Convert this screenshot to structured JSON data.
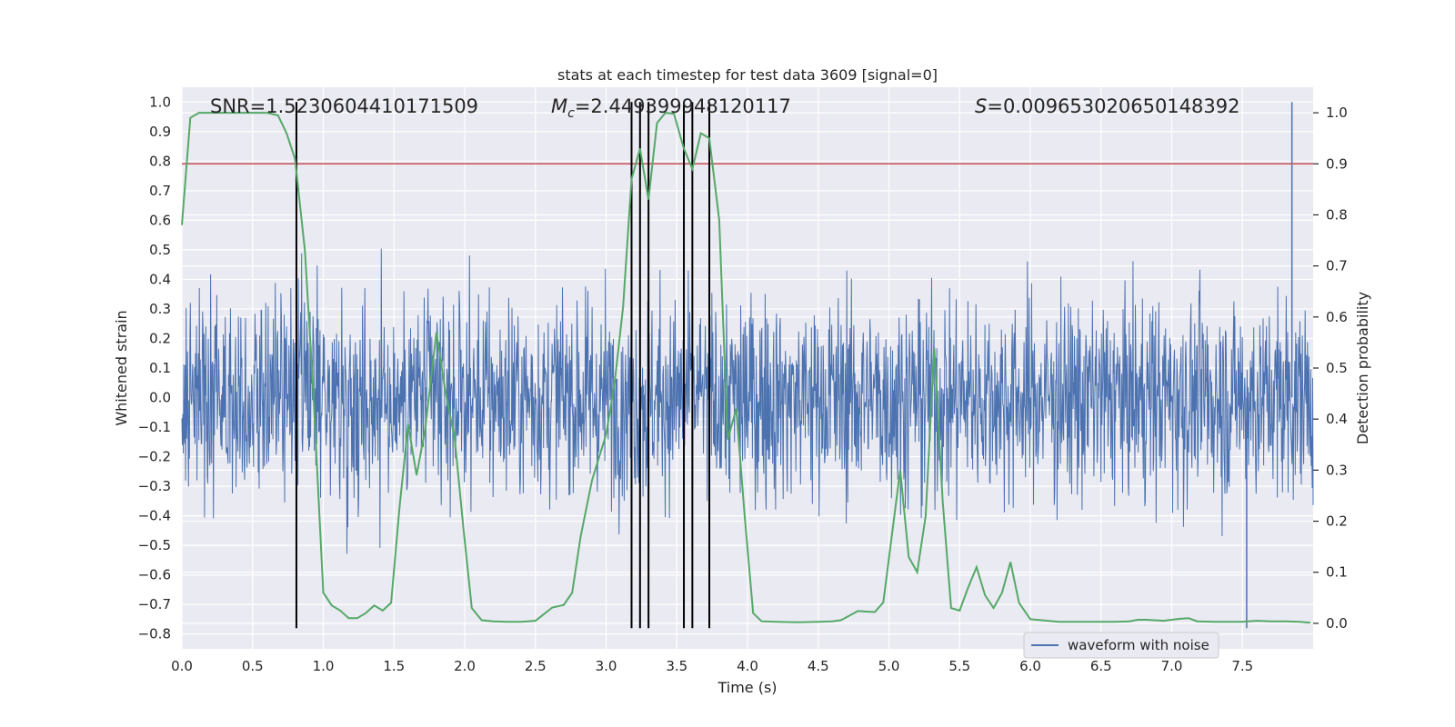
{
  "chart_data": {
    "type": "line",
    "title": "stats at each timestep for test data 3609 [signal=0]",
    "xlabel": "Time (s)",
    "ylabel_left": "Whitened strain",
    "ylabel_right": "Detection probability",
    "xlim": [
      0.0,
      8.0
    ],
    "ylim_left": [
      -0.85,
      1.05
    ],
    "ylim_right": [
      -0.05,
      1.05
    ],
    "x_ticks": [
      "0.0",
      "0.5",
      "1.0",
      "1.5",
      "2.0",
      "2.5",
      "3.0",
      "3.5",
      "4.0",
      "4.5",
      "5.0",
      "5.5",
      "6.0",
      "6.5",
      "7.0",
      "7.5"
    ],
    "y_left_ticks": [
      "−0.8",
      "−0.7",
      "−0.6",
      "−0.5",
      "−0.4",
      "−0.3",
      "−0.2",
      "−0.1",
      "0.0",
      "0.1",
      "0.2",
      "0.3",
      "0.4",
      "0.5",
      "0.6",
      "0.7",
      "0.8",
      "0.9",
      "1.0"
    ],
    "y_right_ticks": [
      "0.0",
      "0.1",
      "0.2",
      "0.3",
      "0.4",
      "0.5",
      "0.6",
      "0.7",
      "0.8",
      "0.9",
      "1.0"
    ],
    "grid": true,
    "legend": {
      "position": "lower-right",
      "entries": [
        "waveform with noise"
      ]
    },
    "annotations": {
      "snr": "SNR=1.5230604410171509",
      "mc_symbol": "M",
      "mc_sub": "c",
      "mc_value": "=2.449399948120117",
      "s_symbol": "S",
      "s_value": "=0.009653020650148392"
    },
    "threshold_right": 0.9,
    "vertical_markers_s": [
      0.81,
      3.18,
      3.24,
      3.3,
      3.55,
      3.61,
      3.73
    ],
    "marker_span_left": [
      -0.78,
      1.0
    ],
    "waveform_noise": {
      "name": "waveform with noise",
      "duration_s": 8.0,
      "n_points": 2400,
      "sigma": 0.17,
      "peak_max": {
        "x": 7.85,
        "y": 1.0
      },
      "peak_min": {
        "x": 7.53,
        "y": -0.78
      }
    },
    "detection_probability": {
      "name": "detection probability",
      "x": [
        0.0,
        0.06,
        0.12,
        0.2,
        0.3,
        0.4,
        0.5,
        0.6,
        0.68,
        0.74,
        0.8,
        0.87,
        0.93,
        1.0,
        1.06,
        1.12,
        1.18,
        1.24,
        1.3,
        1.36,
        1.42,
        1.48,
        1.54,
        1.6,
        1.66,
        1.72,
        1.8,
        1.86,
        1.93,
        1.99,
        2.05,
        2.12,
        2.2,
        2.3,
        2.4,
        2.5,
        2.56,
        2.62,
        2.7,
        2.76,
        2.82,
        2.9,
        3.0,
        3.06,
        3.12,
        3.18,
        3.24,
        3.3,
        3.36,
        3.42,
        3.48,
        3.55,
        3.61,
        3.67,
        3.73,
        3.8,
        3.86,
        3.92,
        3.98,
        4.04,
        4.1,
        4.2,
        4.35,
        4.5,
        4.6,
        4.66,
        4.72,
        4.78,
        4.84,
        4.9,
        4.96,
        5.02,
        5.08,
        5.14,
        5.2,
        5.26,
        5.32,
        5.38,
        5.44,
        5.5,
        5.56,
        5.62,
        5.68,
        5.74,
        5.8,
        5.86,
        5.92,
        6.0,
        6.2,
        6.4,
        6.6,
        6.7,
        6.76,
        6.82,
        6.88,
        6.94,
        7.0,
        7.06,
        7.12,
        7.18,
        7.3,
        7.5,
        7.6,
        7.7,
        7.8,
        7.9,
        7.98
      ],
      "y": [
        0.78,
        0.99,
        1.0,
        1.0,
        1.0,
        1.0,
        1.0,
        1.0,
        0.995,
        0.96,
        0.91,
        0.73,
        0.45,
        0.06,
        0.035,
        0.025,
        0.01,
        0.01,
        0.02,
        0.035,
        0.025,
        0.04,
        0.23,
        0.39,
        0.29,
        0.38,
        0.57,
        0.46,
        0.36,
        0.19,
        0.03,
        0.006,
        0.004,
        0.003,
        0.003,
        0.005,
        0.018,
        0.031,
        0.036,
        0.06,
        0.17,
        0.28,
        0.37,
        0.47,
        0.62,
        0.87,
        0.93,
        0.83,
        0.98,
        1.0,
        0.998,
        0.93,
        0.89,
        0.96,
        0.95,
        0.79,
        0.36,
        0.42,
        0.21,
        0.02,
        0.004,
        0.003,
        0.002,
        0.003,
        0.004,
        0.006,
        0.015,
        0.024,
        0.023,
        0.022,
        0.041,
        0.17,
        0.3,
        0.13,
        0.1,
        0.21,
        0.54,
        0.24,
        0.03,
        0.025,
        0.07,
        0.11,
        0.055,
        0.03,
        0.06,
        0.12,
        0.04,
        0.008,
        0.003,
        0.003,
        0.003,
        0.004,
        0.007,
        0.007,
        0.006,
        0.005,
        0.007,
        0.009,
        0.01,
        0.004,
        0.003,
        0.003,
        0.005,
        0.004,
        0.004,
        0.003,
        0.001
      ]
    },
    "colors": {
      "waveform": "#4C72B0",
      "probability": "#55A868",
      "threshold": "#C44E52",
      "markers": "#000000",
      "background": "#EAEAF2",
      "grid": "#FFFFFF"
    }
  }
}
